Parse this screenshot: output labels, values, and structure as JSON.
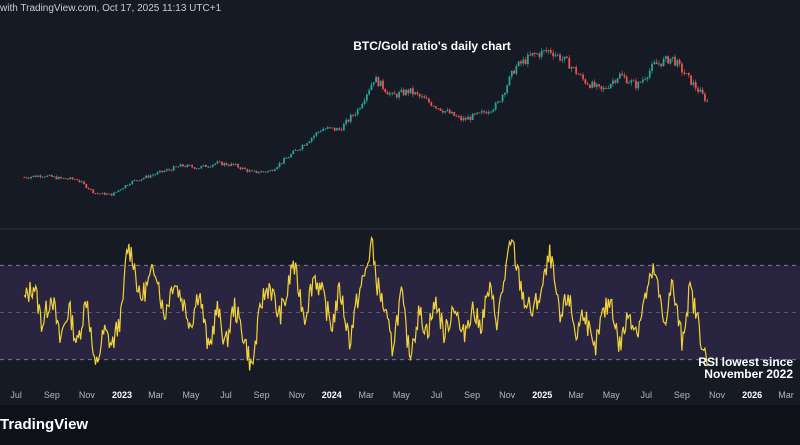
{
  "header": {
    "credit": "with TradingView.com, Oct 17, 2025 11:13 UTC+1"
  },
  "footer": {
    "brand": "TradingView"
  },
  "chart_data": [
    {
      "type": "candlestick",
      "title": "BTC/Gold ratio's daily chart",
      "color_up": "#26a69a",
      "color_down": "#ef5350",
      "x": [
        "2022-07-15",
        "2022-08-15",
        "2022-09-15",
        "2022-10-15",
        "2022-11-15",
        "2022-12-15",
        "2023-01-15",
        "2023-02-15",
        "2023-03-15",
        "2023-04-15",
        "2023-05-15",
        "2023-06-15",
        "2023-07-15",
        "2023-08-15",
        "2023-09-15",
        "2023-10-15",
        "2023-11-15",
        "2023-12-15",
        "2024-01-15",
        "2024-02-15",
        "2024-03-15",
        "2024-04-15",
        "2024-05-15",
        "2024-06-15",
        "2024-07-15",
        "2024-08-15",
        "2024-09-15",
        "2024-10-15",
        "2024-11-15",
        "2024-12-15",
        "2025-01-15",
        "2025-02-15",
        "2025-03-15",
        "2025-04-15",
        "2025-05-15",
        "2025-06-15",
        "2025-07-15",
        "2025-08-15",
        "2025-09-15",
        "2025-10-15"
      ],
      "close": [
        13.0,
        13.4,
        12.8,
        12.6,
        9.9,
        9.6,
        12.0,
        13.2,
        14.2,
        15.3,
        14.9,
        15.8,
        15.4,
        14.0,
        14.2,
        16.8,
        19.7,
        22.6,
        22.4,
        26.3,
        32.5,
        29.0,
        30.0,
        28.0,
        26.1,
        24.3,
        25.4,
        27.3,
        34.6,
        37.0,
        38.0,
        35.5,
        32.0,
        30.0,
        33.2,
        31.0,
        35.1,
        36.5,
        32.1,
        28.0
      ],
      "y_range": [
        5,
        42
      ]
    },
    {
      "type": "line",
      "color": "#f0d239",
      "ylim": [
        15,
        85
      ],
      "reference_lines": [
        70,
        50,
        30
      ],
      "band": [
        30,
        70
      ],
      "x": [
        "2022-07-15",
        "2022-08-01",
        "2022-08-15",
        "2022-09-01",
        "2022-09-15",
        "2022-10-01",
        "2022-10-15",
        "2022-11-01",
        "2022-11-15",
        "2022-12-01",
        "2022-12-15",
        "2023-01-01",
        "2023-01-10",
        "2023-01-20",
        "2023-02-01",
        "2023-02-15",
        "2023-03-01",
        "2023-03-15",
        "2023-04-01",
        "2023-04-15",
        "2023-05-01",
        "2023-05-15",
        "2023-06-01",
        "2023-06-15",
        "2023-07-01",
        "2023-07-15",
        "2023-08-01",
        "2023-08-15",
        "2023-09-01",
        "2023-09-15",
        "2023-10-01",
        "2023-10-15",
        "2023-10-25",
        "2023-11-01",
        "2023-11-15",
        "2023-12-01",
        "2023-12-15",
        "2024-01-01",
        "2024-01-15",
        "2024-02-01",
        "2024-02-15",
        "2024-03-01",
        "2024-03-10",
        "2024-03-20",
        "2024-04-01",
        "2024-04-15",
        "2024-05-01",
        "2024-05-15",
        "2024-06-01",
        "2024-06-15",
        "2024-07-01",
        "2024-07-15",
        "2024-08-01",
        "2024-08-15",
        "2024-09-01",
        "2024-09-15",
        "2024-10-01",
        "2024-10-15",
        "2024-11-01",
        "2024-11-10",
        "2024-11-20",
        "2024-12-01",
        "2024-12-15",
        "2025-01-01",
        "2025-01-15",
        "2025-02-01",
        "2025-02-15",
        "2025-03-01",
        "2025-03-15",
        "2025-04-01",
        "2025-04-15",
        "2025-05-01",
        "2025-05-15",
        "2025-06-01",
        "2025-06-15",
        "2025-07-01",
        "2025-07-15",
        "2025-08-01",
        "2025-08-15",
        "2025-09-01",
        "2025-09-15",
        "2025-10-01",
        "2025-10-15"
      ],
      "values": [
        55,
        62,
        45,
        58,
        38,
        52,
        36,
        57,
        25,
        42,
        36,
        50,
        78,
        74,
        55,
        62,
        70,
        48,
        64,
        56,
        45,
        60,
        33,
        52,
        36,
        53,
        40,
        26,
        55,
        62,
        48,
        57,
        72,
        64,
        48,
        66,
        58,
        44,
        60,
        38,
        56,
        68,
        80,
        62,
        52,
        35,
        58,
        32,
        50,
        42,
        55,
        40,
        54,
        39,
        52,
        44,
        60,
        46,
        72,
        80,
        66,
        55,
        50,
        60,
        75,
        46,
        58,
        40,
        52,
        32,
        48,
        56,
        35,
        50,
        42,
        58,
        68,
        45,
        62,
        38,
        60,
        44,
        26
      ]
    }
  ],
  "annotation": {
    "line1": "RSI lowest since",
    "line2": "November 2022"
  },
  "x_axis": {
    "ticks": [
      {
        "label": "Jul",
        "year": false
      },
      {
        "label": "Sep",
        "year": false
      },
      {
        "label": "Nov",
        "year": false
      },
      {
        "label": "2023",
        "year": true
      },
      {
        "label": "Mar",
        "year": false
      },
      {
        "label": "May",
        "year": false
      },
      {
        "label": "Jul",
        "year": false
      },
      {
        "label": "Sep",
        "year": false
      },
      {
        "label": "Nov",
        "year": false
      },
      {
        "label": "2024",
        "year": true
      },
      {
        "label": "Mar",
        "year": false
      },
      {
        "label": "May",
        "year": false
      },
      {
        "label": "Jul",
        "year": false
      },
      {
        "label": "Sep",
        "year": false
      },
      {
        "label": "Nov",
        "year": false
      },
      {
        "label": "2025",
        "year": true
      },
      {
        "label": "Mar",
        "year": false
      },
      {
        "label": "May",
        "year": false
      },
      {
        "label": "Jul",
        "year": false
      },
      {
        "label": "Sep",
        "year": false
      },
      {
        "label": "Nov",
        "year": false
      },
      {
        "label": "2026",
        "year": true
      },
      {
        "label": "Mar",
        "year": false
      }
    ]
  }
}
